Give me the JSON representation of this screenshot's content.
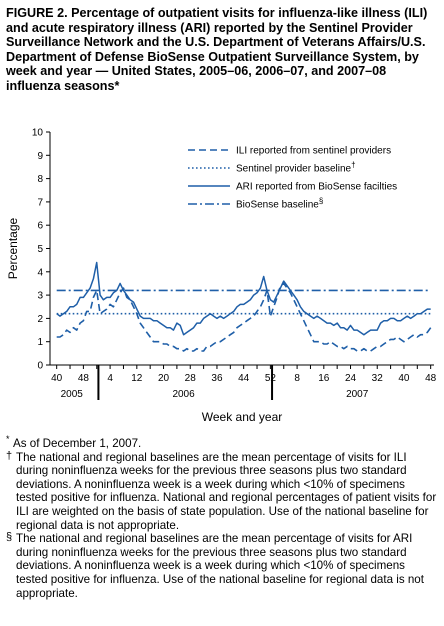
{
  "figure": {
    "title": "FIGURE 2. Percentage of outpatient visits for influenza-like illness (ILI) and acute respiratory illness (ARI) reported by the Sentinel Provider Surveillance Network and the U.S. Department of Veterans Affairs/U.S. Department of Defense BioSense Outpatient Surveillance System, by week and year — United States, 2005–06, 2006–07, and 2007–08 influenza seasons*"
  },
  "chart_data": {
    "type": "line",
    "ylabel": "Percentage",
    "xlabel": "Week and year",
    "ylim": [
      0,
      10
    ],
    "yticks": [
      "0",
      "1",
      "2",
      "3",
      "4",
      "5",
      "6",
      "7",
      "8",
      "9",
      "10"
    ],
    "xticks": [
      "40",
      "48",
      "4",
      "12",
      "20",
      "28",
      "36",
      "44",
      "52",
      "8",
      "16",
      "24",
      "32",
      "40",
      "48"
    ],
    "xtick_weeks": [
      40,
      48,
      56,
      64,
      72,
      80,
      88,
      96,
      104,
      112,
      120,
      128,
      136,
      144,
      152
    ],
    "xrange_weeks": [
      38,
      153
    ],
    "years": [
      {
        "label": "2005",
        "center_week": 44.5
      },
      {
        "label": "2006",
        "center_week": 78
      },
      {
        "label": "2007",
        "center_week": 130
      }
    ],
    "year_dividers_weeks": [
      52.5,
      104.5
    ],
    "legend": "top-right",
    "series": [
      {
        "name": "ILI reported from sentinel providers",
        "style": "dashed",
        "color": "#1f5fa8",
        "weeks": [
          40,
          41,
          42,
          43,
          44,
          45,
          46,
          47,
          48,
          49,
          50,
          51,
          52,
          53,
          54,
          55,
          56,
          57,
          58,
          59,
          60,
          61,
          62,
          63,
          64,
          65,
          66,
          67,
          68,
          69,
          70,
          71,
          72,
          73,
          74,
          75,
          76,
          77,
          78,
          79,
          80,
          81,
          82,
          83,
          84,
          85,
          86,
          87,
          88,
          89,
          90,
          91,
          92,
          93,
          94,
          95,
          96,
          97,
          98,
          99,
          100,
          101,
          102,
          103,
          104,
          105,
          106,
          107,
          108,
          109,
          110,
          111,
          112,
          113,
          114,
          115,
          116,
          117,
          118,
          119,
          120,
          121,
          122,
          123,
          124,
          125,
          126,
          127,
          128,
          129,
          130,
          131,
          132,
          133,
          134,
          135,
          136,
          137,
          138,
          139,
          140,
          141,
          142,
          143,
          144,
          145,
          146,
          147,
          148,
          149,
          150,
          151,
          152
        ],
        "values": [
          1.2,
          1.2,
          1.3,
          1.5,
          1.4,
          1.6,
          1.5,
          1.8,
          1.9,
          2.3,
          2.3,
          2.9,
          3.2,
          2.2,
          2.3,
          2.4,
          2.6,
          2.5,
          2.8,
          3.1,
          3.3,
          2.9,
          2.8,
          2.5,
          2.2,
          1.8,
          1.6,
          1.4,
          1.2,
          1.0,
          1.0,
          1.0,
          0.9,
          0.9,
          0.8,
          0.8,
          0.7,
          0.7,
          0.6,
          0.7,
          0.6,
          0.6,
          0.7,
          0.6,
          0.6,
          0.8,
          0.8,
          0.9,
          1.0,
          1.0,
          1.1,
          1.2,
          1.3,
          1.4,
          1.6,
          1.7,
          1.8,
          1.9,
          2.0,
          2.1,
          2.3,
          2.5,
          2.8,
          3.2,
          2.1,
          2.5,
          2.9,
          3.4,
          3.5,
          3.3,
          3.1,
          2.8,
          2.5,
          2.2,
          1.9,
          1.6,
          1.3,
          1.0,
          1.0,
          1.0,
          0.9,
          0.9,
          1.0,
          0.9,
          0.8,
          0.8,
          0.7,
          0.8,
          0.7,
          0.7,
          0.6,
          0.6,
          0.7,
          0.6,
          0.6,
          0.7,
          0.8,
          0.8,
          0.9,
          1.0,
          1.1,
          1.1,
          1.2,
          1.1,
          1.0,
          1.1,
          1.2,
          1.3,
          1.2,
          1.3,
          1.3,
          1.4,
          1.6
        ]
      },
      {
        "name": "Sentinel provider baseline",
        "style": "dotted",
        "color": "#1f5fa8",
        "weeks": [
          40,
          152
        ],
        "values": [
          2.2,
          2.2
        ]
      },
      {
        "name": "ARI reported from BioSense facilties",
        "style": "solid",
        "color": "#1f5fa8",
        "weeks": [
          40,
          41,
          42,
          43,
          44,
          45,
          46,
          47,
          48,
          49,
          50,
          51,
          52,
          53,
          54,
          55,
          56,
          57,
          58,
          59,
          60,
          61,
          62,
          63,
          64,
          65,
          66,
          67,
          68,
          69,
          70,
          71,
          72,
          73,
          74,
          75,
          76,
          77,
          78,
          79,
          80,
          81,
          82,
          83,
          84,
          85,
          86,
          87,
          88,
          89,
          90,
          91,
          92,
          93,
          94,
          95,
          96,
          97,
          98,
          99,
          100,
          101,
          102,
          103,
          104,
          105,
          106,
          107,
          108,
          109,
          110,
          111,
          112,
          113,
          114,
          115,
          116,
          117,
          118,
          119,
          120,
          121,
          122,
          123,
          124,
          125,
          126,
          127,
          128,
          129,
          130,
          131,
          132,
          133,
          134,
          135,
          136,
          137,
          138,
          139,
          140,
          141,
          142,
          143,
          144,
          145,
          146,
          147,
          148,
          149,
          150,
          151,
          152
        ],
        "values": [
          2.2,
          2.1,
          2.2,
          2.3,
          2.5,
          2.5,
          2.6,
          2.9,
          2.9,
          3.1,
          3.3,
          3.7,
          4.4,
          3.0,
          2.8,
          2.9,
          2.9,
          3.1,
          3.2,
          3.5,
          3.2,
          3.0,
          2.8,
          2.7,
          2.4,
          2.1,
          2.0,
          2.0,
          2.0,
          1.9,
          1.9,
          1.8,
          1.7,
          1.6,
          1.6,
          1.5,
          1.8,
          1.7,
          1.3,
          1.4,
          1.5,
          1.6,
          1.8,
          1.8,
          2.0,
          2.1,
          2.2,
          2.1,
          2.0,
          2.1,
          2.0,
          2.1,
          2.2,
          2.3,
          2.5,
          2.6,
          2.6,
          2.7,
          2.8,
          3.0,
          3.1,
          3.3,
          3.8,
          3.2,
          2.8,
          2.7,
          3.0,
          3.3,
          3.6,
          3.4,
          3.2,
          3.0,
          2.8,
          2.5,
          2.3,
          2.2,
          2.1,
          2.0,
          2.1,
          2.0,
          1.9,
          1.8,
          1.8,
          1.7,
          1.8,
          1.6,
          1.6,
          1.5,
          1.7,
          1.5,
          1.5,
          1.4,
          1.3,
          1.4,
          1.5,
          1.5,
          1.5,
          1.8,
          1.9,
          1.9,
          2.0,
          2.0,
          1.9,
          1.9,
          2.0,
          2.1,
          2.0,
          2.1,
          2.2,
          2.2,
          2.3,
          2.4,
          2.4
        ]
      },
      {
        "name": "BioSense baseline",
        "style": "dashdot",
        "color": "#1f5fa8",
        "weeks": [
          40,
          152
        ],
        "values": [
          3.2,
          3.2
        ]
      }
    ]
  },
  "legend_marks": {
    "ili": "",
    "sentinel_baseline": "†",
    "ari": "",
    "biosense_baseline": "§"
  },
  "footnotes": [
    {
      "mark": "*",
      "text": "As of December 1, 2007."
    },
    {
      "mark": "†",
      "text": "The national and regional baselines are the mean percentage of visits for ILI during noninfluenza weeks for the previous three seasons plus two standard deviations. A noninfluenza week is a week during which <10% of specimens tested positive for influenza. National and regional percentages of patient visits for ILI are weighted on the basis of state population. Use of the national baseline for regional data is not appropriate."
    },
    {
      "mark": "§",
      "text": "The national and regional baselines are the mean percentage of visits for ARI during noninfluenza weeks for the previous three seasons plus two standard deviations. A noninfluenza week is a week during which <10% of specimens tested positive for influenza. Use of the national baseline for regional data is not appropriate."
    }
  ]
}
